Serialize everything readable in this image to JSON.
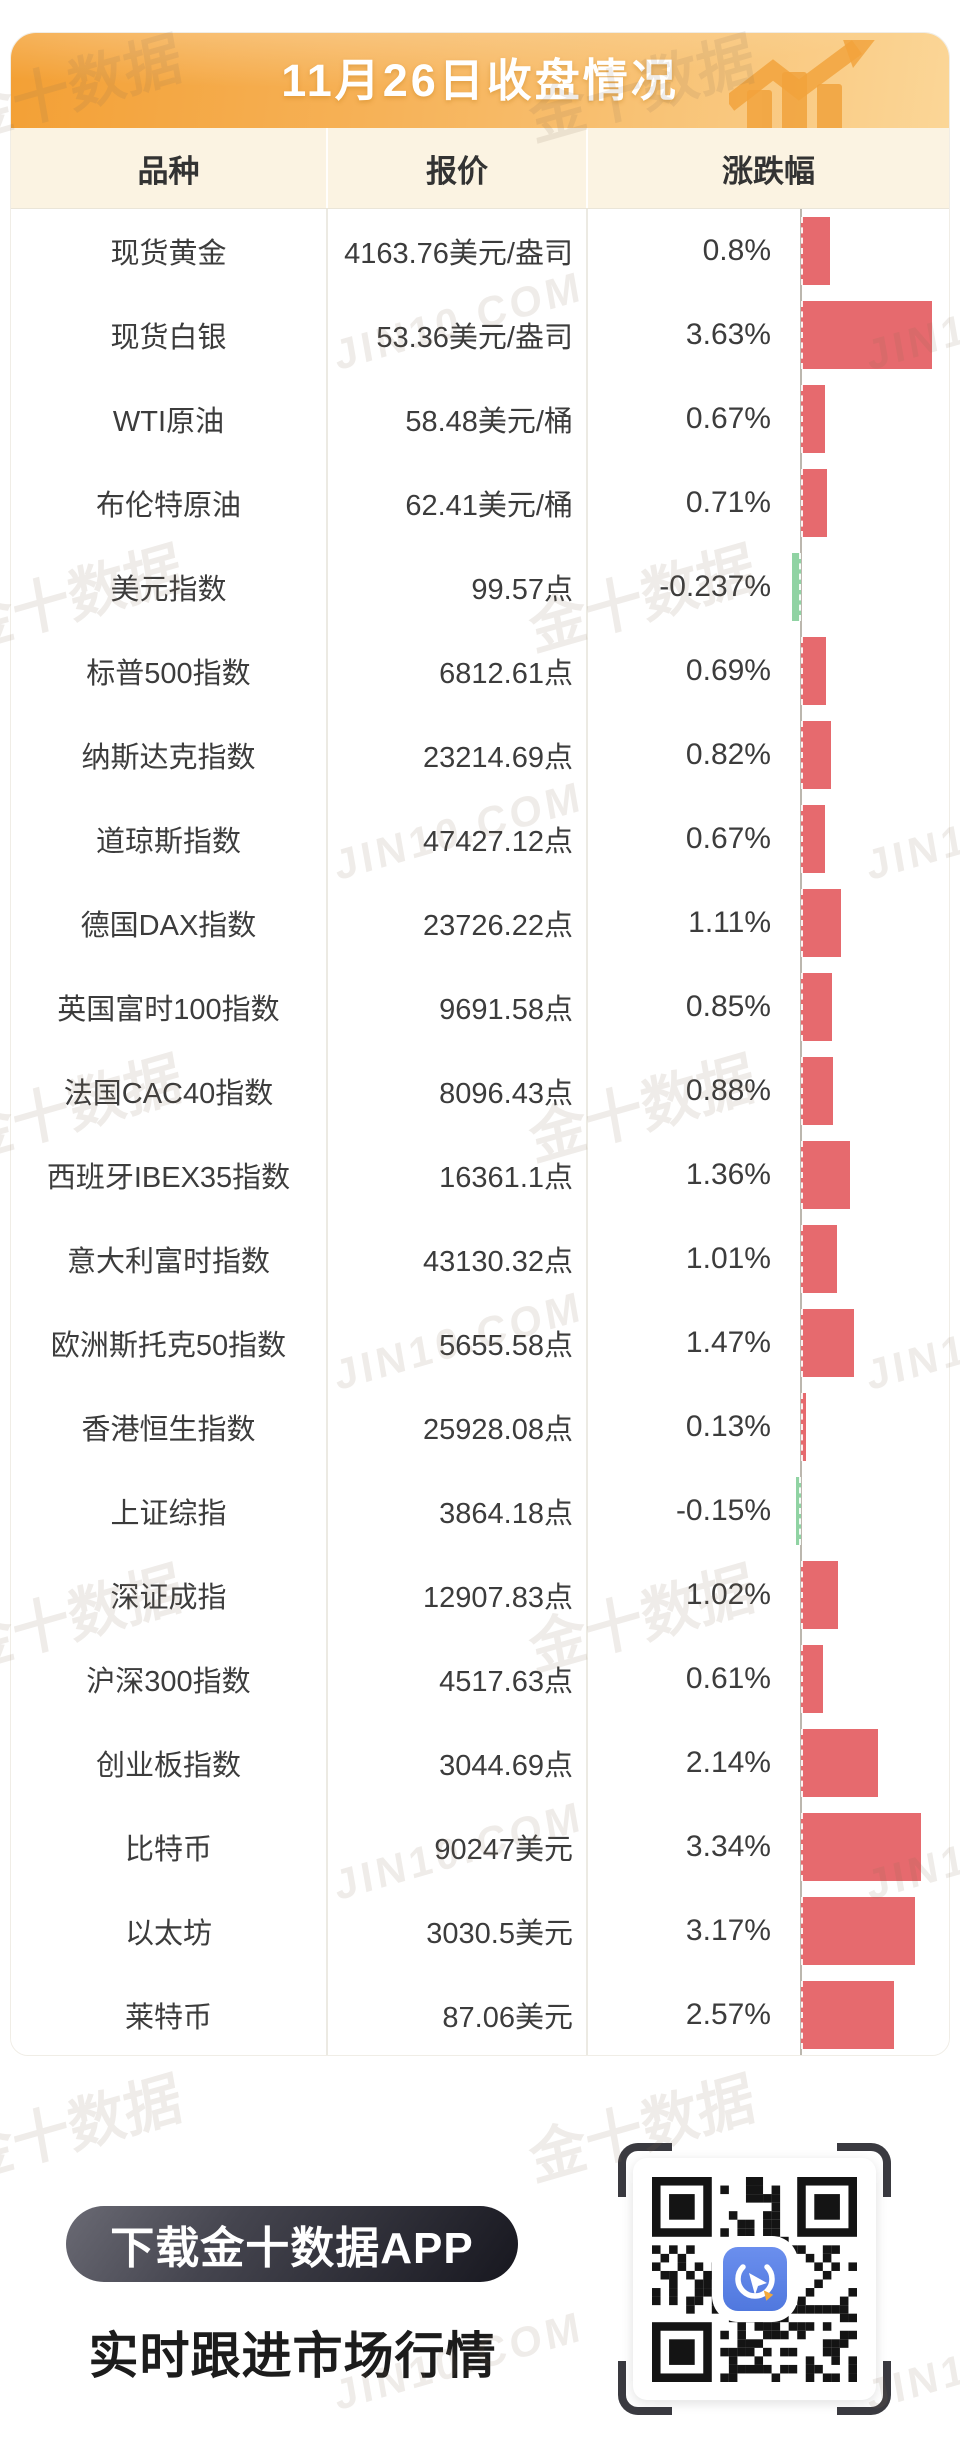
{
  "header": {
    "title": "11月26日收盘情况"
  },
  "table": {
    "columns": [
      "品种",
      "报价",
      "涨跌幅"
    ],
    "rows": [
      {
        "name": "现货黄金",
        "quote": "4163.76美元/盎司",
        "change": "0.8%",
        "pct": 0.8
      },
      {
        "name": "现货白银",
        "quote": "53.36美元/盎司",
        "change": "3.63%",
        "pct": 3.63
      },
      {
        "name": "WTI原油",
        "quote": "58.48美元/桶",
        "change": "0.67%",
        "pct": 0.67
      },
      {
        "name": "布伦特原油",
        "quote": "62.41美元/桶",
        "change": "0.71%",
        "pct": 0.71
      },
      {
        "name": "美元指数",
        "quote": "99.57点",
        "change": "-0.237%",
        "pct": -0.237
      },
      {
        "name": "标普500指数",
        "quote": "6812.61点",
        "change": "0.69%",
        "pct": 0.69
      },
      {
        "name": "纳斯达克指数",
        "quote": "23214.69点",
        "change": "0.82%",
        "pct": 0.82
      },
      {
        "name": "道琼斯指数",
        "quote": "47427.12点",
        "change": "0.67%",
        "pct": 0.67
      },
      {
        "name": "德国DAX指数",
        "quote": "23726.22点",
        "change": "1.11%",
        "pct": 1.11
      },
      {
        "name": "英国富时100指数",
        "quote": "9691.58点",
        "change": "0.85%",
        "pct": 0.85
      },
      {
        "name": "法国CAC40指数",
        "quote": "8096.43点",
        "change": "0.88%",
        "pct": 0.88
      },
      {
        "name": "西班牙IBEX35指数",
        "quote": "16361.1点",
        "change": "1.36%",
        "pct": 1.36
      },
      {
        "name": "意大利富时指数",
        "quote": "43130.32点",
        "change": "1.01%",
        "pct": 1.01
      },
      {
        "name": "欧洲斯托克50指数",
        "quote": "5655.58点",
        "change": "1.47%",
        "pct": 1.47
      },
      {
        "name": "香港恒生指数",
        "quote": "25928.08点",
        "change": "0.13%",
        "pct": 0.13
      },
      {
        "name": "上证综指",
        "quote": "3864.18点",
        "change": "-0.15%",
        "pct": -0.15
      },
      {
        "name": "深证成指",
        "quote": "12907.83点",
        "change": "1.02%",
        "pct": 1.02
      },
      {
        "name": "沪深300指数",
        "quote": "4517.63点",
        "change": "0.61%",
        "pct": 0.61
      },
      {
        "name": "创业板指数",
        "quote": "3044.69点",
        "change": "2.14%",
        "pct": 2.14
      },
      {
        "name": "比特币",
        "quote": "90247美元",
        "change": "3.34%",
        "pct": 3.34
      },
      {
        "name": "以太坊",
        "quote": "3030.5美元",
        "change": "3.17%",
        "pct": 3.17
      },
      {
        "name": "莱特币",
        "quote": "87.06美元",
        "change": "2.57%",
        "pct": 2.57
      }
    ]
  },
  "footer": {
    "download_button": "下载金十数据APP",
    "tagline": "实时跟进市场行情"
  },
  "watermark": {
    "cn": "金十数据",
    "en": "JIN10.COM"
  },
  "colors": {
    "positive_bar": "#e66a6e",
    "negative_bar": "#90d3a3",
    "header_orange": "#f5a83f",
    "band_beige": "#fbf3e2"
  },
  "chart_data": {
    "type": "bar",
    "orientation": "horizontal",
    "title": "11月26日收盘情况",
    "categories": [
      "现货黄金",
      "现货白银",
      "WTI原油",
      "布伦特原油",
      "美元指数",
      "标普500指数",
      "纳斯达克指数",
      "道琼斯指数",
      "德国DAX指数",
      "英国富时100指数",
      "法国CAC40指数",
      "西班牙IBEX35指数",
      "意大利富时指数",
      "欧洲斯托克50指数",
      "香港恒生指数",
      "上证综指",
      "深证成指",
      "沪深300指数",
      "创业板指数",
      "比特币",
      "以太坊",
      "莱特币"
    ],
    "values": [
      0.8,
      3.63,
      0.67,
      0.71,
      -0.237,
      0.69,
      0.82,
      0.67,
      1.11,
      0.85,
      0.88,
      1.36,
      1.01,
      1.47,
      0.13,
      -0.15,
      1.02,
      0.61,
      2.14,
      3.34,
      3.17,
      2.57
    ],
    "quotes": [
      "4163.76美元/盎司",
      "53.36美元/盎司",
      "58.48美元/桶",
      "62.41美元/桶",
      "99.57点",
      "6812.61点",
      "23214.69点",
      "47427.12点",
      "23726.22点",
      "9691.58点",
      "8096.43点",
      "16361.1点",
      "43130.32点",
      "5655.58点",
      "25928.08点",
      "3864.18点",
      "12907.83点",
      "4517.63点",
      "3044.69点",
      "90247美元",
      "3030.5美元",
      "87.06美元"
    ],
    "unit": "%",
    "xlabel": "涨跌幅",
    "ylabel": "品种",
    "xlim": [
      -0.5,
      4.0
    ],
    "grid": false,
    "legend": "none",
    "positive_color": "#e66a6e",
    "negative_color": "#90d3a3"
  }
}
